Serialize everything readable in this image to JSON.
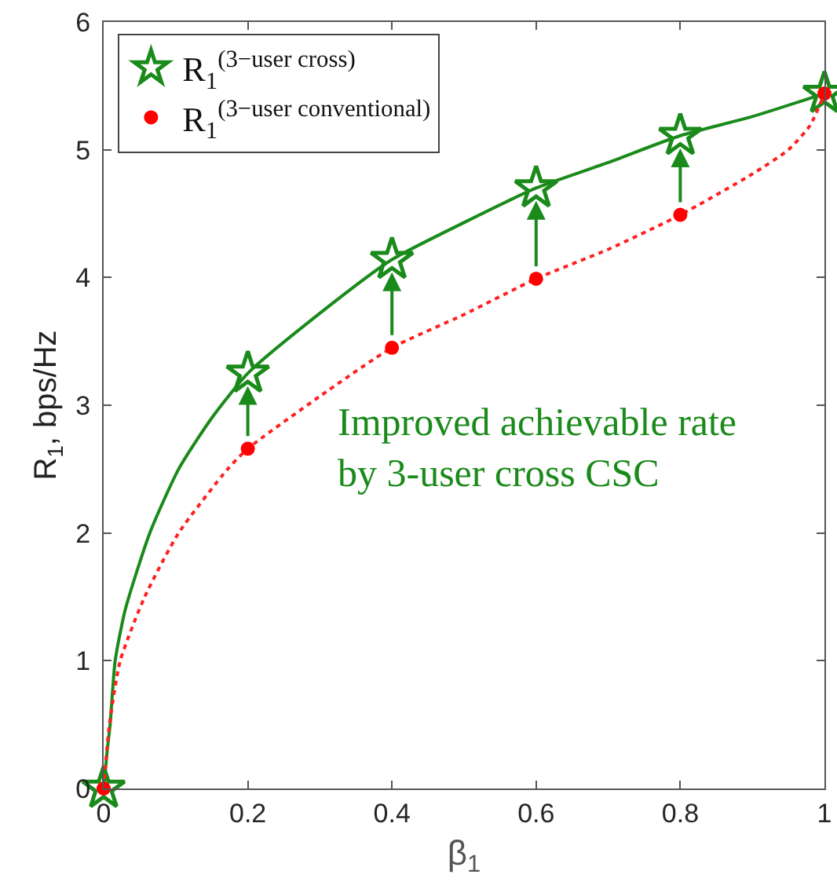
{
  "chart_data": {
    "type": "line",
    "xlabel": "β$_{1}$",
    "ylabel": "R$_{1}$, bps/Hz",
    "series": [
      {
        "color": "#1a8a1a",
        "line_style": "solid",
        "marker": "none",
        "x": [
          0,
          0.005,
          0.009,
          0.016,
          0.03,
          0.064,
          0.104,
          0.15,
          0.2,
          0.3,
          0.4,
          0.5,
          0.6,
          0.7,
          0.8,
          0.9,
          1
        ],
        "values": [
          0,
          0.3,
          0.5,
          1,
          1.4,
          2,
          2.5,
          2.9,
          3.25,
          3.72,
          4.14,
          4.43,
          4.7,
          4.9,
          5.11,
          5.26,
          5.44
        ]
      },
      {
        "type": "scatter",
        "name": "R$_{1}$$^{(3−user cross)}$",
        "color": "#1a8a1a",
        "marker": "star",
        "x": [
          0,
          0.2,
          0.4,
          0.6,
          0.8,
          1
        ],
        "values": [
          0,
          3.25,
          4.14,
          4.7,
          5.11,
          5.44
        ]
      },
      {
        "color": "#ff2020",
        "line_style": "dotted",
        "marker": "none",
        "x": [
          0,
          0.008,
          0.023,
          0.057,
          0.104,
          0.172,
          0.2,
          0.3,
          0.4,
          0.5,
          0.6,
          0.7,
          0.8,
          0.9,
          0.95,
          0.98,
          1
        ],
        "values": [
          0,
          0.5,
          1,
          1.5,
          2,
          2.5,
          2.66,
          3.07,
          3.45,
          3.71,
          3.99,
          4.22,
          4.49,
          4.81,
          5,
          5.19,
          5.44
        ]
      },
      {
        "type": "scatter",
        "name": "R$_{1}$$^{(3−user conventional)}$",
        "color": "#ff0000",
        "marker": "circle",
        "x": [
          0,
          0.2,
          0.4,
          0.6,
          0.8,
          1
        ],
        "values": [
          0,
          2.66,
          3.45,
          3.99,
          4.49,
          5.44
        ]
      }
    ],
    "xlim": [
      0,
      1
    ],
    "xticks": [
      0,
      0.2,
      0.4,
      0.6,
      0.8,
      1
    ],
    "ylim": [
      0,
      6
    ],
    "yticks": [
      0,
      1,
      2,
      3,
      4,
      5,
      6
    ],
    "grid": false,
    "legend": "top left",
    "annotations": [
      "Improved achievable rate\nby 3-user cross CSC"
    ]
  }
}
